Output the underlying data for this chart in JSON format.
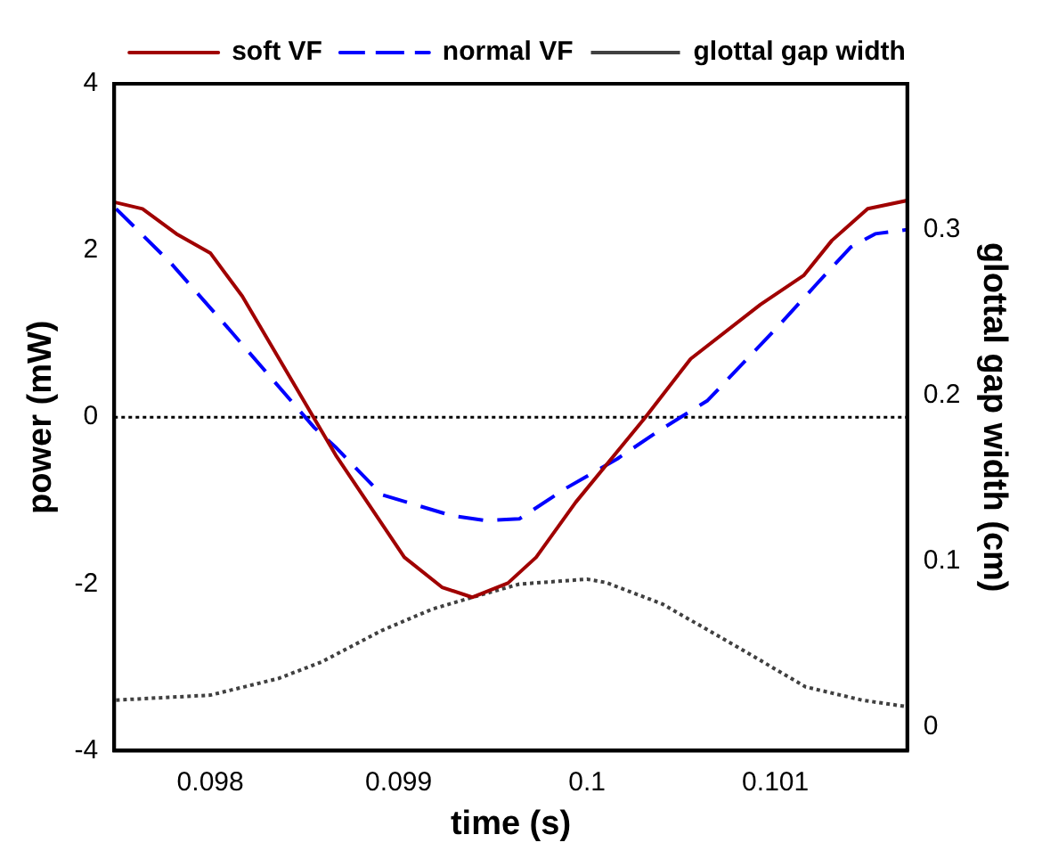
{
  "chart_data": {
    "type": "line",
    "xlabel": "time (s)",
    "ylabel": "power (mW)",
    "y2label": "glottal gap width (cm)",
    "xlim": [
      0.09749,
      0.1017
    ],
    "xticks": [
      0.098,
      0.099,
      0.1,
      0.101
    ],
    "ylim": [
      -4,
      4
    ],
    "yticks": [
      -4,
      -2,
      0,
      2,
      4
    ],
    "y2lim": [
      -0.0145,
      0.388
    ],
    "y2ticks": [
      0,
      0.1,
      0.2,
      0.3
    ],
    "grid": false,
    "legend": "top",
    "marker": "none",
    "ref_lines": [
      {
        "axis": "y",
        "value": 0,
        "color": "#000000",
        "line_style": "dotted"
      }
    ],
    "series": [
      {
        "name": "soft VF",
        "color": "#a00000",
        "line_style": "solid",
        "x": [
          0.09749,
          0.09764,
          0.09782,
          0.098,
          0.09817,
          0.09867,
          0.09903,
          0.09923,
          0.09939,
          0.09958,
          0.09973,
          0.09994,
          0.10031,
          0.10055,
          0.10092,
          0.10115,
          0.1013,
          0.10149,
          0.1017
        ],
        "values": [
          2.58,
          2.5,
          2.2,
          1.97,
          1.45,
          -0.47,
          -1.68,
          -2.04,
          -2.16,
          -1.99,
          -1.68,
          -1.02,
          0,
          0.7,
          1.35,
          1.7,
          2.12,
          2.5,
          2.6
        ]
      },
      {
        "name": "normal VF",
        "color": "#0000ff",
        "line_style": "dashed",
        "x": [
          0.0975,
          0.09779,
          0.09809,
          0.09855,
          0.09867,
          0.09891,
          0.09928,
          0.09946,
          0.09964,
          0.09989,
          0.10016,
          0.10037,
          0.10064,
          0.10101,
          0.10122,
          0.1014,
          0.10153,
          0.1017
        ],
        "values": [
          2.5,
          1.85,
          1.08,
          -0.12,
          -0.37,
          -0.93,
          -1.18,
          -1.24,
          -1.22,
          -0.85,
          -0.5,
          -0.18,
          0.2,
          1.08,
          1.6,
          2.04,
          2.2,
          2.25
        ]
      },
      {
        "name": "glottal gap width",
        "color": "#404040",
        "line_style": "dotted",
        "axis": "y2",
        "x": [
          0.0975,
          0.098,
          0.09836,
          0.09859,
          0.09891,
          0.09918,
          0.09939,
          0.09964,
          0.1,
          0.1001,
          0.1004,
          0.1008,
          0.10116,
          0.10146,
          0.1017
        ],
        "values": [
          0.016,
          0.019,
          0.029,
          0.039,
          0.058,
          0.071,
          0.078,
          0.086,
          0.089,
          0.087,
          0.074,
          0.048,
          0.024,
          0.016,
          0.012
        ]
      }
    ]
  }
}
